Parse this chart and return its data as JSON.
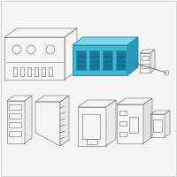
{
  "bg_color": "#f5f5f5",
  "border_color": "#cccccc",
  "outline_color": "#666666",
  "highlight_color": "#40b8d0",
  "highlight_edge": "#2090a8",
  "line_width": 0.7,
  "thin_line": 0.4,
  "fig_width": 2.0,
  "fig_height": 2.0,
  "dpi": 100
}
